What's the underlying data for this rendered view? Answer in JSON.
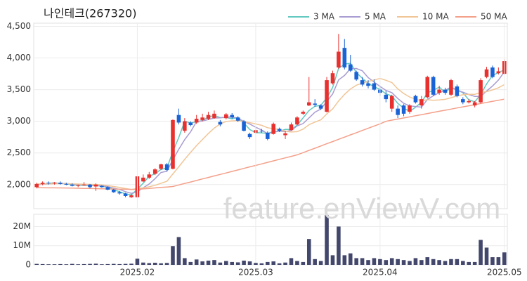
{
  "watermark": "feature.enViewV.com",
  "chart_data": [
    {
      "type": "candlestick",
      "title": "나인테크(267320)",
      "up_color": "#e8312f",
      "down_color": "#1a63d6",
      "xlim": [
        -0.5,
        79.5
      ],
      "ylim": [
        1620,
        4550
      ],
      "yticks": [
        {
          "value": 2000,
          "label": "2,000"
        },
        {
          "value": 2500,
          "label": "2,500"
        },
        {
          "value": 3000,
          "label": "3,000"
        },
        {
          "value": 3500,
          "label": "3,500"
        },
        {
          "value": 4000,
          "label": "4,000"
        },
        {
          "value": 4500,
          "label": "4,500"
        }
      ],
      "open": [
        1960,
        2010,
        2030,
        2020,
        2030,
        2010,
        2000,
        1980,
        1990,
        2000,
        1970,
        1980,
        1960,
        1920,
        1880,
        1860,
        1800,
        1800,
        2050,
        2110,
        2170,
        2250,
        2320,
        2250,
        3100,
        2850,
        2980,
        2980,
        3020,
        3040,
        3050,
        2990,
        3050,
        3100,
        3060,
        3000,
        2800,
        2820,
        2850,
        2820,
        2800,
        2880,
        2780,
        2860,
        2950,
        3120,
        3250,
        3280,
        3250,
        3150,
        3600,
        3850,
        4160,
        3900,
        3780,
        3650,
        3600,
        3600,
        3500,
        3420,
        3200,
        3200,
        3250,
        3150,
        3400,
        3250,
        3380,
        3700,
        3450,
        3500,
        3420,
        3550,
        3350,
        3300,
        3250,
        3300,
        3700,
        3850,
        3760,
        3750
      ],
      "high": [
        2030,
        2050,
        2050,
        2040,
        2050,
        2030,
        2020,
        2000,
        2040,
        2010,
        2020,
        1990,
        1970,
        1930,
        1900,
        1870,
        1850,
        2140,
        2160,
        2200,
        2260,
        2330,
        2340,
        3030,
        3200,
        3050,
        3000,
        3100,
        3120,
        3150,
        3170,
        3020,
        3130,
        3130,
        3080,
        3020,
        2820,
        2900,
        2880,
        2840,
        2980,
        2900,
        2850,
        2980,
        3080,
        3170,
        3700,
        3350,
        3270,
        3700,
        3800,
        4380,
        4300,
        4050,
        3800,
        3700,
        3650,
        3660,
        3560,
        3480,
        3420,
        3250,
        3270,
        3270,
        3420,
        3400,
        3720,
        3720,
        3560,
        3530,
        3670,
        3580,
        3380,
        3350,
        3320,
        3680,
        3860,
        3880,
        3850,
        3980
      ],
      "low": [
        1940,
        1990,
        2000,
        2000,
        2000,
        1990,
        1970,
        1960,
        1980,
        1940,
        1900,
        1950,
        1910,
        1870,
        1840,
        1800,
        1790,
        1790,
        2040,
        2090,
        2150,
        2230,
        2210,
        2240,
        2950,
        2820,
        2920,
        2960,
        3000,
        3020,
        3040,
        2920,
        3030,
        3040,
        2990,
        2840,
        2720,
        2800,
        2820,
        2700,
        2790,
        2830,
        2720,
        2850,
        2940,
        3100,
        3240,
        3230,
        3180,
        3140,
        3580,
        3830,
        3820,
        3780,
        3640,
        3550,
        3520,
        3480,
        3400,
        3300,
        3150,
        3050,
        3080,
        3120,
        3280,
        3200,
        3360,
        3400,
        3420,
        3420,
        3400,
        3380,
        3270,
        3280,
        3220,
        3280,
        3680,
        3680,
        3740,
        3740
      ],
      "close": [
        2010,
        2030,
        2020,
        2030,
        2010,
        2000,
        1980,
        1990,
        2000,
        1960,
        2000,
        1960,
        1920,
        1880,
        1860,
        1820,
        1830,
        2130,
        2110,
        2160,
        2240,
        2320,
        2230,
        3020,
        2980,
        3000,
        2940,
        3040,
        3060,
        3100,
        3120,
        2950,
        3110,
        3060,
        3010,
        2850,
        2750,
        2860,
        2840,
        2720,
        2960,
        2850,
        2810,
        2950,
        3060,
        3150,
        3300,
        3260,
        3200,
        3650,
        3760,
        4100,
        3850,
        3800,
        3660,
        3580,
        3560,
        3500,
        3450,
        3350,
        3400,
        3100,
        3120,
        3250,
        3300,
        3350,
        3700,
        3420,
        3500,
        3450,
        3650,
        3400,
        3300,
        3320,
        3300,
        3650,
        3820,
        3700,
        3790,
        3950
      ],
      "series": [
        {
          "name": "3 MA",
          "color": "#62c9c0",
          "values": [
            2000,
            2010,
            2020,
            2027,
            2020,
            2013,
            1997,
            1990,
            1990,
            1983,
            1987,
            1973,
            1960,
            1920,
            1887,
            1853,
            1837,
            1927,
            2023,
            2133,
            2170,
            2240,
            2263,
            2523,
            2743,
            3000,
            2973,
            2993,
            3013,
            3067,
            3093,
            3057,
            3060,
            3040,
            3060,
            2973,
            2870,
            2820,
            2817,
            2807,
            2840,
            2843,
            2873,
            2870,
            2940,
            3053,
            3170,
            3237,
            3253,
            3370,
            3537,
            3837,
            3903,
            3917,
            3770,
            3680,
            3600,
            3547,
            3503,
            3433,
            3400,
            3283,
            3207,
            3157,
            3223,
            3300,
            3450,
            3490,
            3540,
            3457,
            3533,
            3500,
            3450,
            3340,
            3307,
            3423,
            3590,
            3723,
            3770,
            3813
          ]
        },
        {
          "name": "5 MA",
          "color": "#a89cd2",
          "values": [
            2000,
            2005,
            2010,
            2018,
            2020,
            2018,
            2008,
            2002,
            1996,
            1986,
            1986,
            1982,
            1968,
            1944,
            1924,
            1888,
            1862,
            1888,
            1950,
            2010,
            2094,
            2192,
            2212,
            2394,
            2558,
            2710,
            2834,
            2996,
            3004,
            3028,
            3052,
            3054,
            3068,
            3068,
            3050,
            2996,
            2956,
            2906,
            2862,
            2804,
            2826,
            2846,
            2836,
            2858,
            2926,
            2964,
            3054,
            3144,
            3194,
            3312,
            3434,
            3654,
            3724,
            3832,
            3834,
            3798,
            3690,
            3620,
            3550,
            3488,
            3452,
            3360,
            3284,
            3244,
            3234,
            3224,
            3344,
            3404,
            3454,
            3484,
            3544,
            3484,
            3460,
            3424,
            3394,
            3394,
            3478,
            3558,
            3652,
            3782
          ]
        },
        {
          "name": "10 MA",
          "color": "#f1c596",
          "values": [
            2010,
            2010,
            2012,
            2014,
            2016,
            2014,
            2012,
            2008,
            2005,
            2003,
            2002,
            1995,
            1985,
            1970,
            1955,
            1937,
            1922,
            1937,
            1949,
            1965,
            1989,
            2021,
            2053,
            2168,
            2280,
            2398,
            2509,
            2617,
            2712,
            2806,
            2894,
            2957,
            2998,
            3006,
            3009,
            2994,
            2978,
            2958,
            2936,
            2898,
            2882,
            2872,
            2842,
            2831,
            2836,
            2876,
            2946,
            2987,
            3023,
            3116,
            3196,
            3321,
            3425,
            3510,
            3570,
            3603,
            3629,
            3653,
            3678,
            3648,
            3612,
            3512,
            3439,
            3384,
            3349,
            3326,
            3340,
            3332,
            3337,
            3347,
            3372,
            3401,
            3419,
            3426,
            3426,
            3456,
            3468,
            3496,
            3530,
            3580
          ]
        },
        {
          "name": "50 MA",
          "color": "#f4a08a",
          "values": [
            1950,
            1950,
            1949,
            1948,
            1947,
            1946,
            1944,
            1942,
            1940,
            1938,
            1936,
            1934,
            1932,
            1930,
            1928,
            1926,
            1924,
            1925,
            1932,
            1940,
            1947,
            1955,
            1962,
            1970,
            1994,
            2018,
            2041,
            2065,
            2089,
            2113,
            2137,
            2160,
            2184,
            2208,
            2232,
            2256,
            2280,
            2303,
            2327,
            2351,
            2375,
            2399,
            2422,
            2446,
            2470,
            2505,
            2540,
            2575,
            2610,
            2645,
            2680,
            2715,
            2750,
            2785,
            2820,
            2855,
            2890,
            2925,
            2960,
            3000,
            3018,
            3035,
            3053,
            3070,
            3088,
            3105,
            3123,
            3140,
            3158,
            3175,
            3193,
            3210,
            3228,
            3245,
            3263,
            3280,
            3298,
            3315,
            3333,
            3350
          ]
        }
      ]
    },
    {
      "type": "bar",
      "color": "#42476b",
      "xlim": [
        -0.5,
        79.5
      ],
      "ylim": [
        0,
        26400000
      ],
      "yticks": [
        0,
        {
          "value": 10000000,
          "label": "10M"
        },
        {
          "value": 20000000,
          "label": "20M"
        }
      ],
      "xticks": [
        {
          "value": 17,
          "label": "2025.02"
        },
        {
          "value": 37,
          "label": "2025.03"
        },
        {
          "value": 58,
          "label": "2025.04"
        },
        {
          "value": 79,
          "label": "2025.05"
        }
      ],
      "values": [
        500000,
        400000,
        300000,
        300000,
        400000,
        300000,
        500000,
        300000,
        400000,
        500000,
        600000,
        300000,
        400000,
        500000,
        400000,
        500000,
        600000,
        3200000,
        1200000,
        900000,
        1100000,
        800000,
        1000000,
        9800000,
        14500000,
        3500000,
        1500000,
        2800000,
        1800000,
        2200000,
        2500000,
        1200000,
        2000000,
        1500000,
        1300000,
        2200000,
        1800000,
        1000000,
        800000,
        1500000,
        1800000,
        800000,
        1200000,
        3500000,
        2000000,
        1500000,
        13500000,
        3000000,
        2000000,
        26000000,
        5000000,
        20000000,
        5000000,
        6000000,
        3500000,
        3500000,
        2500000,
        3500000,
        3000000,
        2500000,
        3500000,
        3000000,
        2500000,
        2000000,
        3500000,
        2500000,
        4000000,
        3000000,
        2500000,
        2000000,
        3000000,
        3000000,
        2000000,
        1500000,
        1500000,
        13000000,
        9000000,
        4000000,
        4000000,
        6500000
      ]
    }
  ]
}
